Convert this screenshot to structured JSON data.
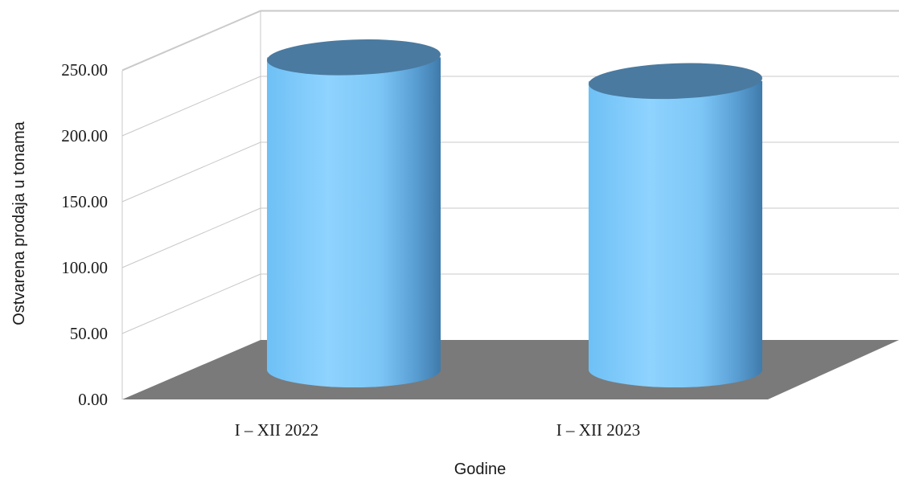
{
  "chart_data": {
    "type": "bar",
    "style": "3d-cylinder",
    "categories": [
      "I – XII 2022",
      "I – XII 2023"
    ],
    "series": [
      {
        "values": [
          237,
          219
        ]
      }
    ],
    "xlabel": "Godine",
    "ylabel": "Ostvarena prodaja u tonama",
    "ylim": [
      0,
      250
    ],
    "yticks": [
      "0.00",
      "50.00",
      "100.00",
      "150.00",
      "200.00",
      "250.00"
    ],
    "grid": true,
    "legend": "none",
    "colors": {
      "bar_light": "#8fd3ff",
      "bar_mid": "#6ec0f5",
      "bar_dark": "#3f7bab",
      "top_face": "#4a7aa0",
      "floor": "#7a7a7a",
      "grid": "#c8c8c8"
    }
  }
}
